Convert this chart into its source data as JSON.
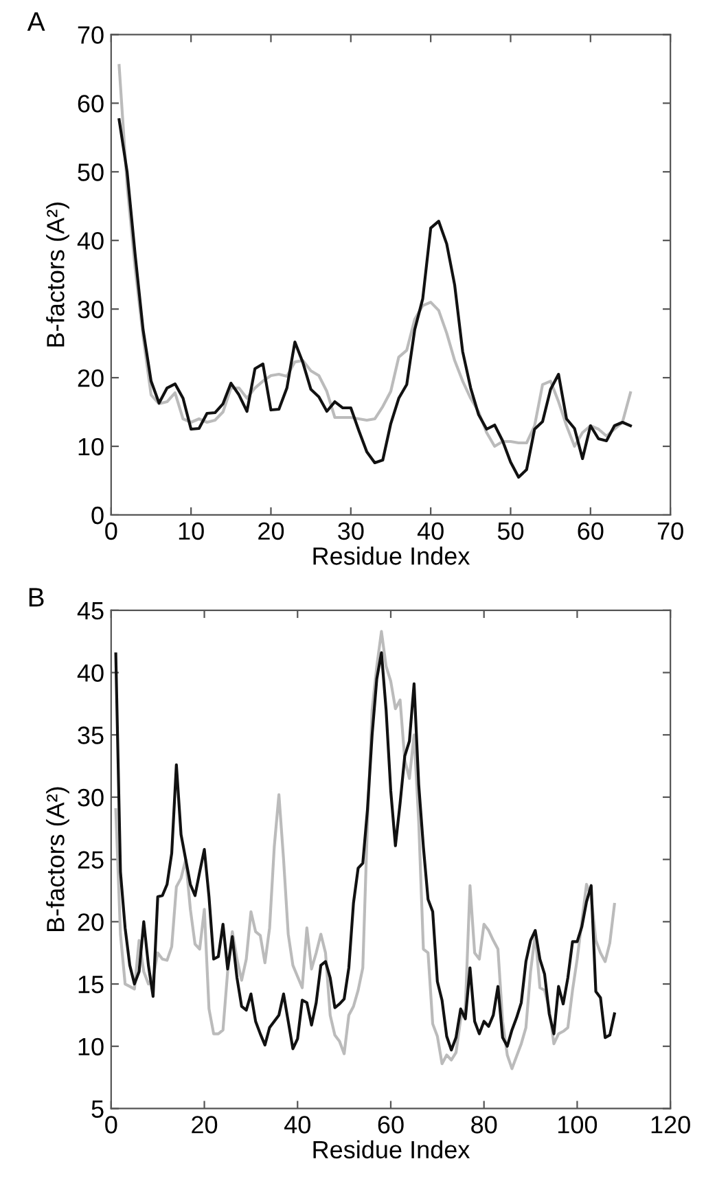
{
  "chart_data": [
    {
      "type": "line",
      "title": "A",
      "xlabel": "Residue Index",
      "ylabel": "B-factors (A²)",
      "xlim": [
        0,
        70
      ],
      "ylim": [
        0,
        70
      ],
      "xticks": [
        0,
        10,
        20,
        30,
        40,
        50,
        60,
        70
      ],
      "yticks": [
        0,
        10,
        20,
        30,
        40,
        50,
        60,
        70
      ],
      "grid": false,
      "legend": false,
      "x": [
        1,
        2,
        3,
        4,
        5,
        6,
        7,
        8,
        9,
        10,
        11,
        12,
        13,
        14,
        15,
        16,
        17,
        18,
        19,
        20,
        21,
        22,
        23,
        24,
        25,
        26,
        27,
        28,
        29,
        30,
        31,
        32,
        33,
        34,
        35,
        36,
        37,
        38,
        39,
        40,
        41,
        42,
        43,
        44,
        45,
        46,
        47,
        48,
        49,
        50,
        51,
        52,
        53,
        54,
        55,
        56,
        57,
        58,
        59,
        60,
        61,
        62,
        63,
        64,
        65
      ],
      "series": [
        {
          "color": "#bbbbbb",
          "values": [
            65.5,
            48,
            36,
            26,
            17.5,
            16.2,
            16.5,
            17.8,
            14,
            13.5,
            14,
            13.5,
            13.8,
            15,
            18.5,
            18.5,
            17,
            18.5,
            19.5,
            20.3,
            20.5,
            20.2,
            22.3,
            22.5,
            21,
            20.3,
            18,
            14.2,
            14.2,
            14.2,
            14,
            13.8,
            14,
            15.8,
            18,
            23,
            24,
            28.5,
            30.5,
            31,
            29.8,
            26.5,
            22.5,
            19.5,
            17,
            15,
            12,
            10,
            10.7,
            10.7,
            10.5,
            10.5,
            13,
            19,
            19.5,
            16.5,
            13,
            10,
            12,
            13,
            12.5,
            11.5,
            12.5,
            13.5,
            17.8
          ]
        },
        {
          "color": "#111111",
          "values": [
            57.6,
            50,
            38,
            27,
            19.5,
            16.3,
            18.5,
            19.1,
            17,
            12.5,
            12.6,
            14.8,
            14.9,
            16.2,
            19.2,
            17.5,
            15.1,
            21.3,
            22,
            15.3,
            15.4,
            18.5,
            25.2,
            22.2,
            18.3,
            17.2,
            15.1,
            16.5,
            15.6,
            15.6,
            12.3,
            9.2,
            7.6,
            8,
            13.3,
            17,
            19,
            27,
            31.5,
            41.8,
            42.8,
            39.5,
            33.5,
            23.8,
            18.5,
            14.6,
            12.5,
            13.1,
            10.8,
            7.7,
            5.5,
            6.6,
            12.5,
            13.6,
            18.3,
            20.5,
            14,
            12.6,
            8.2,
            13,
            11.1,
            10.8,
            13,
            13.5,
            13
          ]
        }
      ]
    },
    {
      "type": "line",
      "title": "B",
      "xlabel": "Residue Index",
      "ylabel": "B-factors (A²)",
      "xlim": [
        0,
        120
      ],
      "ylim": [
        5,
        45
      ],
      "xticks": [
        0,
        20,
        40,
        60,
        80,
        100,
        120
      ],
      "yticks": [
        5,
        10,
        15,
        20,
        25,
        30,
        35,
        40,
        45
      ],
      "grid": false,
      "legend": false,
      "x": [
        1,
        2,
        3,
        4,
        5,
        6,
        7,
        8,
        9,
        10,
        11,
        12,
        13,
        14,
        15,
        16,
        17,
        18,
        19,
        20,
        21,
        22,
        23,
        24,
        25,
        26,
        27,
        28,
        29,
        30,
        31,
        32,
        33,
        34,
        35,
        36,
        37,
        38,
        39,
        40,
        41,
        42,
        43,
        44,
        45,
        46,
        47,
        48,
        49,
        50,
        51,
        52,
        53,
        54,
        55,
        56,
        57,
        58,
        59,
        60,
        61,
        62,
        63,
        64,
        65,
        66,
        67,
        68,
        69,
        70,
        71,
        72,
        73,
        74,
        75,
        76,
        77,
        78,
        79,
        80,
        81,
        82,
        83,
        84,
        85,
        86,
        87,
        88,
        89,
        90,
        91,
        92,
        93,
        94,
        95,
        96,
        97,
        98,
        99,
        100,
        101,
        102,
        103,
        104,
        105,
        106,
        107,
        108
      ],
      "series": [
        {
          "color": "#bbbbbb",
          "values": [
            29,
            19,
            15,
            14.8,
            14.6,
            18.5,
            16,
            15,
            15.5,
            17.5,
            17,
            16.9,
            18,
            22.8,
            23.5,
            25,
            21,
            18.2,
            17.8,
            21,
            13,
            11,
            11,
            11.3,
            16,
            19.2,
            17,
            15.3,
            17,
            20.8,
            19.2,
            18.9,
            16.7,
            19.5,
            26,
            30.2,
            25,
            19,
            16.5,
            15.6,
            14.7,
            19.5,
            16.2,
            17.5,
            19,
            17.5,
            12.5,
            10.9,
            10.4,
            9.4,
            12.5,
            13.2,
            14.5,
            16.3,
            28,
            37,
            40.5,
            43.3,
            40.5,
            39.3,
            37.1,
            37.8,
            33,
            31.5,
            35,
            28,
            17.8,
            17.5,
            11.8,
            10.8,
            8.6,
            9.3,
            8.9,
            9.5,
            12.2,
            13,
            22.9,
            17.5,
            17,
            19.8,
            19.3,
            18.5,
            17.8,
            12,
            9.3,
            8.2,
            9.2,
            10.2,
            11.5,
            16,
            19,
            14.7,
            14.5,
            13,
            10.2,
            11,
            11.2,
            11.5,
            14.5,
            17,
            20,
            23,
            22,
            18.5,
            17.5,
            16.8,
            18.3,
            21.4
          ]
        },
        {
          "color": "#111111",
          "values": [
            41.5,
            24,
            19.5,
            16.5,
            15,
            16,
            20,
            16.5,
            14,
            22,
            22.1,
            23,
            25.5,
            32.6,
            27,
            25,
            23,
            22.1,
            24,
            25.8,
            22,
            17,
            17.2,
            19.8,
            16.2,
            18.8,
            15.5,
            13.2,
            12.9,
            14.2,
            12,
            11,
            10.1,
            11.5,
            12,
            12.5,
            14.2,
            12,
            9.8,
            10.6,
            13.7,
            13.5,
            11.7,
            13.5,
            16.5,
            16.8,
            15.5,
            13.1,
            13.4,
            13.8,
            16.3,
            21.5,
            24.3,
            24.7,
            29,
            35,
            39.5,
            41.6,
            37,
            30.5,
            26.1,
            29.5,
            33.3,
            34.5,
            39.1,
            31,
            26,
            21.8,
            20.8,
            15.2,
            13.7,
            10.8,
            9.7,
            10.7,
            13,
            12.2,
            16.3,
            12,
            11,
            12,
            11.6,
            12.5,
            14.8,
            10.7,
            10,
            11.3,
            12.3,
            13.5,
            16.8,
            18.5,
            19.3,
            17,
            15.8,
            12.6,
            11,
            14.8,
            13.4,
            15.5,
            18.4,
            18.4,
            19.6,
            21.6,
            22.9,
            14.4,
            13.9,
            10.7,
            10.9,
            12.6
          ]
        }
      ]
    }
  ]
}
